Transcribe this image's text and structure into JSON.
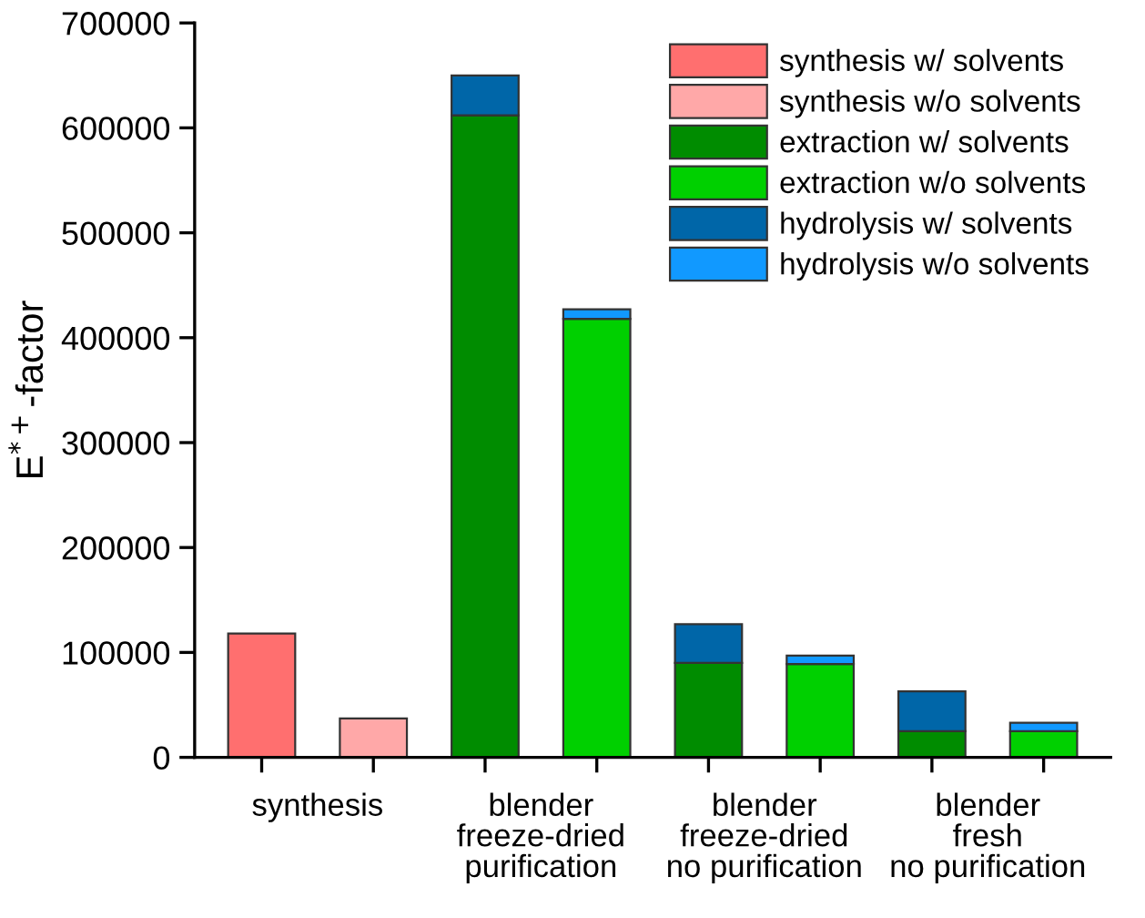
{
  "chart_data": {
    "type": "bar",
    "stacked": true,
    "ylabel": "E$^{*+}$-factor",
    "categories": [
      "synthesis",
      null,
      "blender\nfreeze-dried\npurification",
      null,
      "blender\nfreeze-dried\nno purification",
      null,
      "blender\nfresh\nno purification",
      null
    ],
    "series": [
      {
        "name": "synthesis w/ solvents",
        "color": "#ff6f6f",
        "values": [
          118000,
          null,
          null,
          null,
          null,
          null,
          null,
          null
        ]
      },
      {
        "name": "synthesis w/o solvents",
        "color": "#ffa8a8",
        "values": [
          null,
          37000,
          null,
          null,
          null,
          null,
          null,
          null
        ]
      },
      {
        "name": "extraction w/ solvents",
        "color": "#008c00",
        "values": [
          null,
          null,
          612000,
          null,
          90000,
          null,
          25000,
          null
        ]
      },
      {
        "name": "extraction w/o solvents",
        "color": "#00d000",
        "values": [
          null,
          null,
          null,
          418000,
          null,
          89000,
          null,
          25000
        ]
      },
      {
        "name": "hydrolysis w/ solvents",
        "color": "#0066a8",
        "values": [
          null,
          null,
          38000,
          null,
          37000,
          null,
          38000,
          null
        ]
      },
      {
        "name": "hydrolysis w/o solvents",
        "color": "#1199ff",
        "values": [
          null,
          null,
          null,
          9000,
          null,
          8000,
          null,
          8000
        ]
      }
    ],
    "ylim": [
      0,
      700000
    ],
    "yticks": [
      0,
      100000,
      200000,
      300000,
      400000,
      500000,
      600000,
      700000
    ],
    "grid": false,
    "legend": "top right"
  }
}
